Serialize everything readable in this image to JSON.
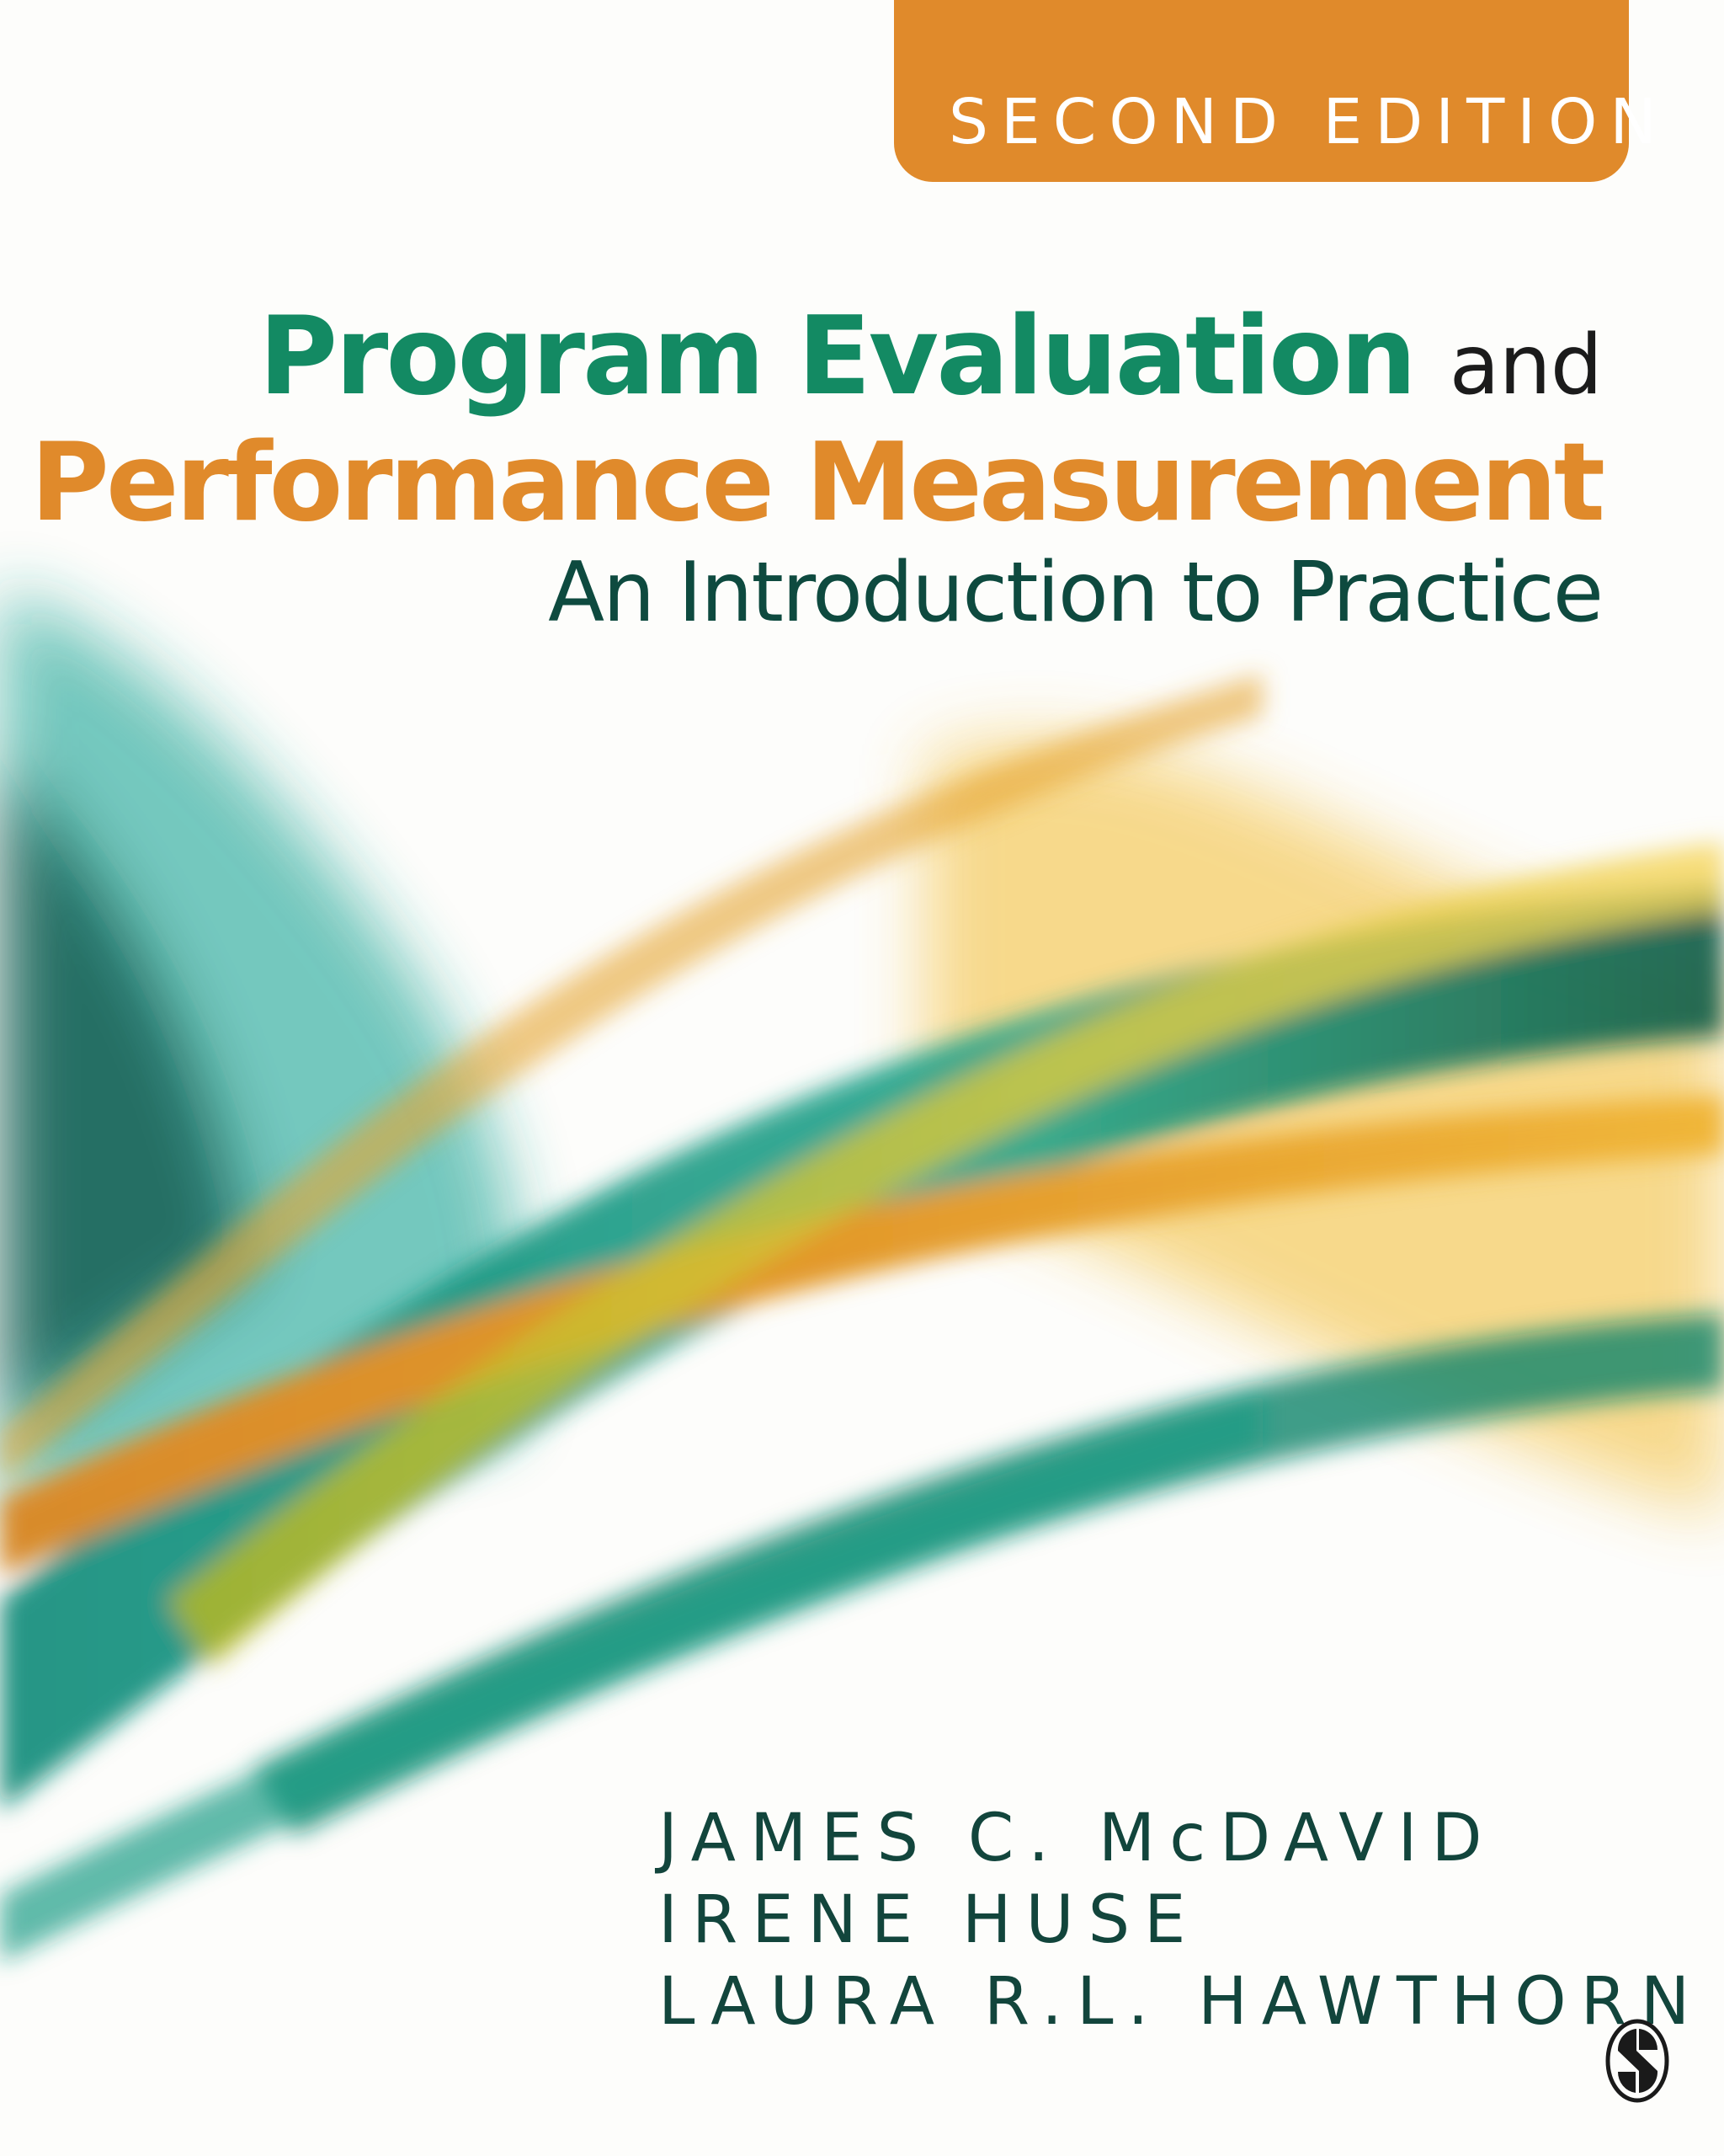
{
  "cover": {
    "edition": "SECOND EDITION",
    "title_part1": "Program Evaluation",
    "title_connector": "and",
    "title_part2": "Performance Measurement",
    "subtitle": "An Introduction to Practice",
    "authors": [
      "JAMES C. McDAVID",
      "IRENE HUSE",
      "LAURA R.L. HAWTHORN"
    ],
    "publisher_logo": "SAGE",
    "colors": {
      "orange": "#e08a2b",
      "green": "#138a63",
      "dark_teal": "#0e4a3f"
    }
  }
}
